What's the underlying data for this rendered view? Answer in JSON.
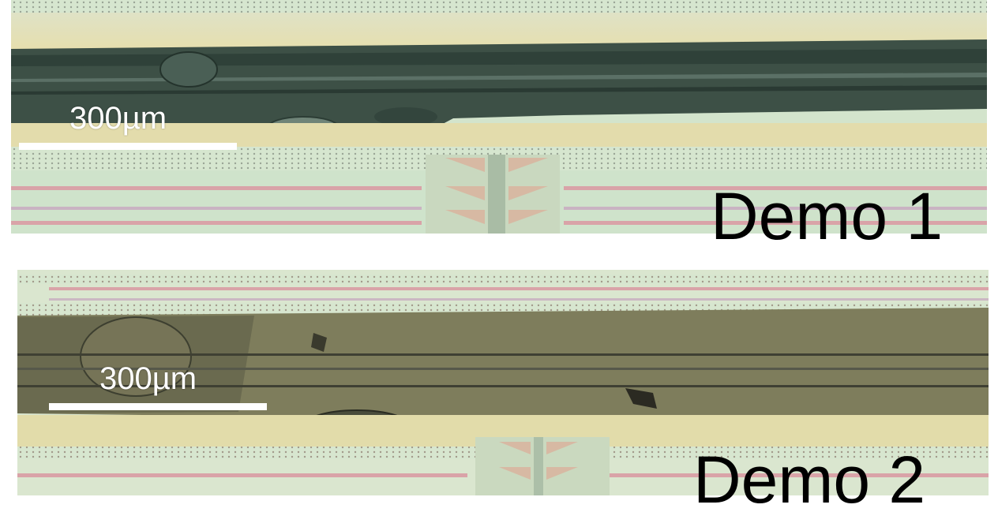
{
  "panels": [
    {
      "label": "Demo 1",
      "scale_bar": "300µm"
    },
    {
      "label": "Demo 2",
      "scale_bar": "300µm"
    }
  ],
  "colors": {
    "background": "#ffffff",
    "label_text": "#000000",
    "scale_bar": "#ffffff",
    "substrate_tan": "#e2dcaa",
    "substrate_green": "#cfe2c4",
    "channel_dark_green": "#3d5046",
    "channel_olive": "#7e7d5c",
    "trace_pink": "#d9a3a8"
  }
}
